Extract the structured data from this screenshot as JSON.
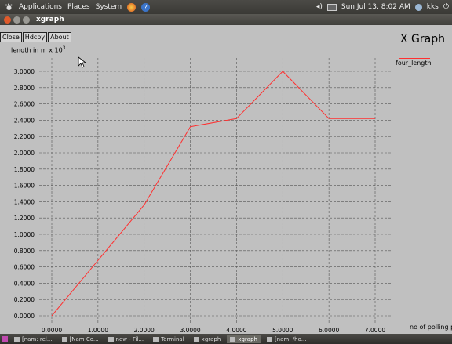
{
  "top_panel": {
    "menus": [
      "Applications",
      "Places",
      "System"
    ],
    "datetime": "Sun Jul 13,  8:02 AM",
    "user": "kks"
  },
  "window": {
    "title": "xgraph"
  },
  "toolbar": {
    "close": "Close",
    "hdcpy": "Hdcpy",
    "about": "About"
  },
  "graph": {
    "title": "X Graph",
    "ylabel": "length in m x 10",
    "ylabel_exp": "3",
    "xlabel": "no of polling po",
    "legend": "four_length"
  },
  "chart_data": {
    "type": "line",
    "title": "X Graph",
    "xlabel": "no of polling po",
    "ylabel": "length in m x 10^3",
    "xlim": [
      0,
      7
    ],
    "ylim": [
      0,
      3
    ],
    "grid": true,
    "legend_position": "top-right",
    "x_ticks": [
      "0.0000",
      "1.0000",
      "2.0000",
      "3.0000",
      "4.0000",
      "5.0000",
      "6.0000",
      "7.0000"
    ],
    "y_ticks": [
      "0.0000",
      "0.2000",
      "0.4000",
      "0.6000",
      "0.8000",
      "1.0000",
      "1.2000",
      "1.4000",
      "1.6000",
      "1.8000",
      "2.0000",
      "2.2000",
      "2.4000",
      "2.6000",
      "2.8000",
      "3.0000"
    ],
    "series": [
      {
        "name": "four_length",
        "color": "#ff3030",
        "x": [
          0,
          2,
          3,
          4,
          5,
          6,
          7
        ],
        "y": [
          0,
          1.36,
          2.32,
          2.42,
          3.0,
          2.42,
          2.42
        ]
      }
    ]
  },
  "taskbar": {
    "items": [
      {
        "label": "[nam: rel...",
        "active": false
      },
      {
        "label": "[Nam Co...",
        "active": false
      },
      {
        "label": "new - Fil...",
        "active": false
      },
      {
        "label": "Terminal",
        "active": false
      },
      {
        "label": "xgraph",
        "active": false
      },
      {
        "label": "xgraph",
        "active": true
      },
      {
        "label": "[nam: /ho...",
        "active": false
      }
    ]
  }
}
